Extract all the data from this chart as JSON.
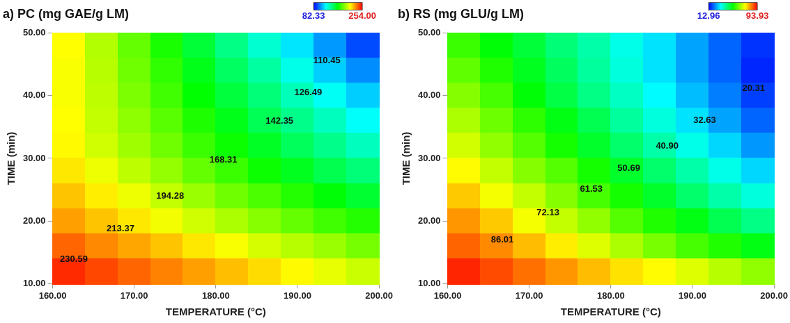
{
  "chart_data": [
    {
      "type": "heatmap",
      "title": "a) PC (mg GAE/g LM)",
      "xlabel": "TEMPERATURE (°C)",
      "ylabel": "TIME (min)",
      "xlim": [
        160,
        200
      ],
      "xticks": [
        {
          "value": 160,
          "label": "160.00"
        },
        {
          "value": 170,
          "label": "170.00"
        },
        {
          "value": 180,
          "label": "180.00"
        },
        {
          "value": 190,
          "label": "190.00"
        },
        {
          "value": 200,
          "label": "200.00"
        }
      ],
      "ylim": [
        10,
        50
      ],
      "yticks": [
        {
          "value": 10,
          "label": "10.00"
        },
        {
          "value": 20,
          "label": "20.00"
        },
        {
          "value": 30,
          "label": "30.00"
        },
        {
          "value": 40,
          "label": "40.00"
        },
        {
          "value": 50,
          "label": "50.00"
        }
      ],
      "clim": [
        82.33,
        254
      ],
      "cticks": [
        {
          "value": 82.33,
          "label": "82.33"
        },
        {
          "value": 254,
          "label": "254.00"
        }
      ],
      "cells": [
        [
          211,
          198,
          185,
          172,
          159,
          146,
          133,
          121,
          108,
          95
        ],
        [
          210,
          199,
          187,
          176,
          164,
          152,
          141,
          129,
          117,
          106
        ],
        [
          210,
          200,
          189,
          179,
          168,
          158,
          148,
          137,
          127,
          117
        ],
        [
          211,
          201,
          192,
          183,
          173,
          164,
          154,
          145,
          136,
          126
        ],
        [
          212,
          203,
          195,
          187,
          178,
          170,
          162,
          153,
          145,
          136
        ],
        [
          215,
          208,
          200,
          193,
          185,
          178,
          170,
          163,
          155,
          148
        ],
        [
          221,
          214,
          208,
          201,
          194,
          187,
          181,
          174,
          167,
          160
        ],
        [
          227,
          221,
          215,
          209,
          203,
          197,
          191,
          185,
          179,
          174
        ],
        [
          237,
          231,
          226,
          221,
          215,
          210,
          204,
          199,
          194,
          188
        ],
        [
          247,
          242,
          237,
          232,
          227,
          222,
          217,
          212,
          207,
          202
        ]
      ],
      "annotations": [
        "110.45",
        "126.49",
        "142.35",
        "168.31",
        "194.28",
        "213.37",
        "230.59"
      ]
    },
    {
      "type": "heatmap",
      "title": "b) RS (mg GLU/g LM)",
      "xlabel": "TEMPERATURE (°C)",
      "ylabel": "TIME (min)",
      "xlim": [
        160,
        200
      ],
      "xticks": [
        {
          "value": 160,
          "label": "160.00"
        },
        {
          "value": 170,
          "label": "170.00"
        },
        {
          "value": 180,
          "label": "180.00"
        },
        {
          "value": 190,
          "label": "190.00"
        },
        {
          "value": 200,
          "label": "200.00"
        }
      ],
      "ylim": [
        10,
        50
      ],
      "yticks": [
        {
          "value": 10,
          "label": "10.00"
        },
        {
          "value": 20,
          "label": "20.00"
        },
        {
          "value": 30,
          "label": "30.00"
        },
        {
          "value": 40,
          "label": "40.00"
        },
        {
          "value": 50,
          "label": "50.00"
        }
      ],
      "clim": [
        12.96,
        93.93
      ],
      "cticks": [
        {
          "value": 12.96,
          "label": "12.96"
        },
        {
          "value": 93.93,
          "label": "93.93"
        }
      ],
      "cells": [
        [
          58,
          53,
          49,
          44,
          40,
          35,
          31,
          26,
          21,
          17
        ],
        [
          61,
          56,
          51,
          46,
          41,
          36,
          31,
          26,
          21,
          16
        ],
        [
          64,
          59,
          53,
          48,
          43,
          38,
          33,
          28,
          23,
          18
        ],
        [
          67,
          62,
          57,
          52,
          47,
          41,
          36,
          31,
          26,
          21
        ],
        [
          70,
          65,
          60,
          55,
          50,
          45,
          40,
          35,
          30,
          25
        ],
        [
          74,
          69,
          64,
          60,
          55,
          50,
          45,
          40,
          35,
          30
        ],
        [
          78,
          73,
          69,
          64,
          59,
          55,
          50,
          45,
          40,
          36
        ],
        [
          82,
          78,
          73,
          69,
          65,
          60,
          56,
          52,
          47,
          43
        ],
        [
          86,
          83,
          79,
          75,
          71,
          67,
          63,
          59,
          56,
          52
        ],
        [
          91,
          88,
          85,
          82,
          79,
          76,
          74,
          71,
          68,
          65
        ]
      ],
      "annotations": [
        "20.31",
        "32.63",
        "40.90",
        "50.69",
        "61.53",
        "72.13",
        "86.01"
      ]
    }
  ]
}
